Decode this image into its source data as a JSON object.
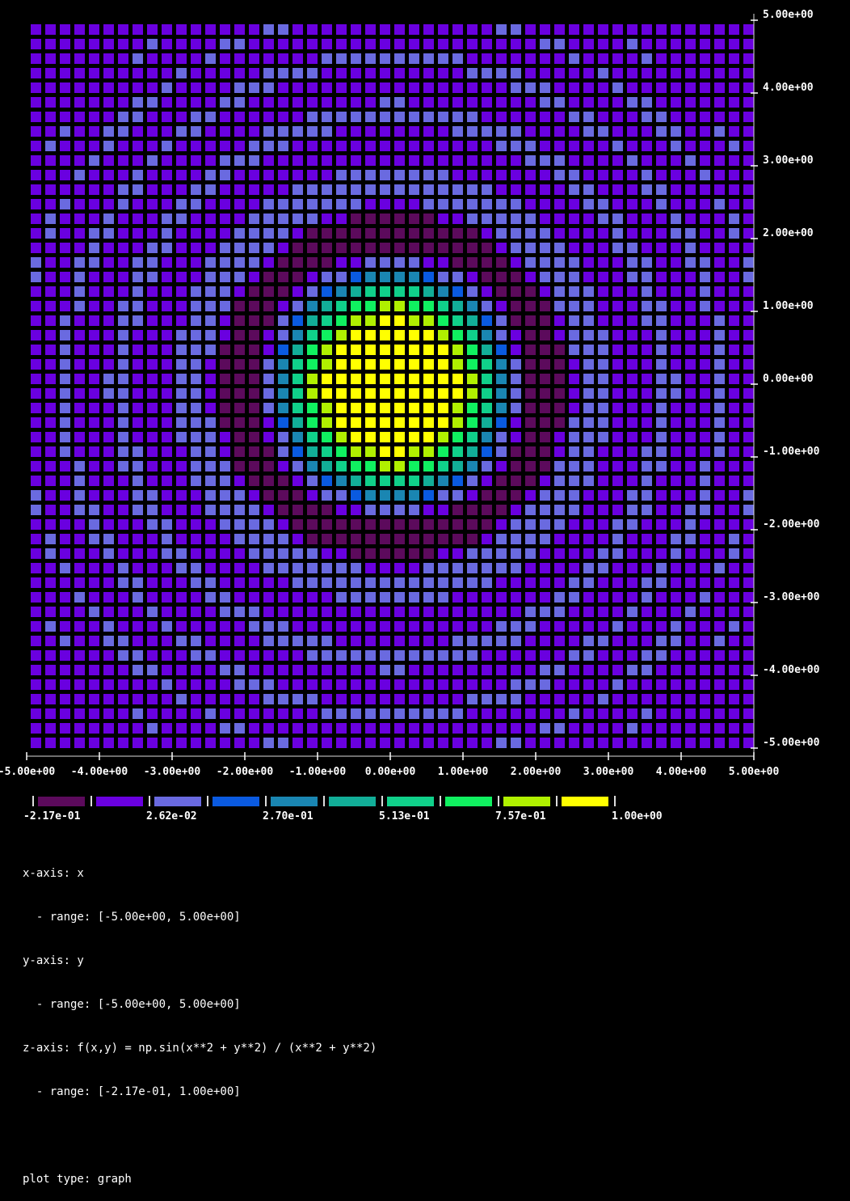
{
  "chart_data": {
    "type": "heatmap",
    "function": "f(x,y) = np.sin(x**2 + y**2) / (x**2 + y**2)",
    "grid": {
      "nx": 50,
      "ny": 50
    },
    "xlim": [
      -5,
      5
    ],
    "ylim": [
      -5,
      5
    ],
    "zlim": [
      -0.217,
      1.0
    ],
    "x_ticks": [
      "-5.00e+00",
      "-4.00e+00",
      "-3.00e+00",
      "-2.00e+00",
      "-1.00e+00",
      "0.00e+00",
      "1.00e+00",
      "2.00e+00",
      "3.00e+00",
      "4.00e+00",
      "5.00e+00"
    ],
    "y_ticks": [
      "5.00e+00",
      "4.00e+00",
      "3.00e+00",
      "2.00e+00",
      "1.00e+00",
      "0.00e+00",
      "-1.00e+00",
      "-2.00e+00",
      "-3.00e+00",
      "-4.00e+00",
      "-5.00e+00"
    ],
    "colorbar": {
      "colors": [
        "#5c0a5c",
        "#6a00e0",
        "#6a6ae0",
        "#0a5ae0",
        "#1a86b2",
        "#12ae98",
        "#10d08a",
        "#10f060",
        "#b0f000",
        "#ffff00"
      ],
      "labels": [
        "-2.17e-01",
        "2.62e-02",
        "2.70e-01",
        "5.13e-01",
        "7.57e-01",
        "1.00e+00"
      ]
    },
    "legend": {
      "lines": [
        "x-axis: x",
        "  - range: [-5.00e+00, 5.00e+00]",
        "y-axis: y",
        "  - range: [-5.00e+00, 5.00e+00]",
        "z-axis: f(x,y) = np.sin(x**2 + y**2) / (x**2 + y**2)",
        "  - range: [-2.17e-01, 1.00e+00]",
        "",
        "plot type: graph"
      ]
    }
  }
}
